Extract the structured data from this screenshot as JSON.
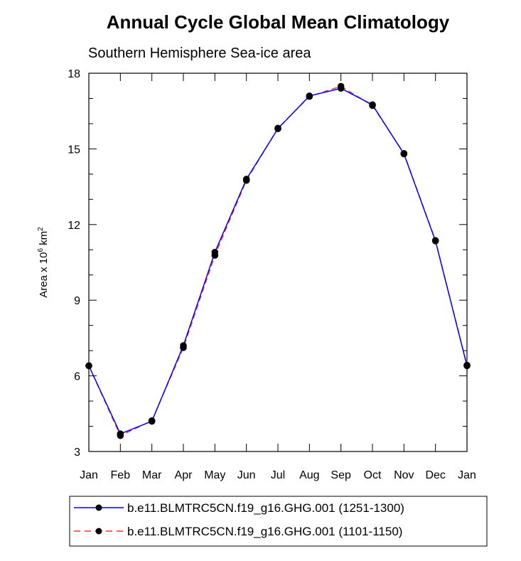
{
  "chart_data": {
    "type": "line",
    "title": "Annual Cycle Global Mean Climatology",
    "subtitle": "Southern Hemisphere Sea-ice area",
    "ylabel": {
      "prefix": "Area x 10",
      "exp1": "6",
      "mid": " km",
      "exp2": "2"
    },
    "xlabel": "",
    "categories": [
      "Jan",
      "Feb",
      "Mar",
      "Apr",
      "May",
      "Jun",
      "Jul",
      "Aug",
      "Sep",
      "Oct",
      "Nov",
      "Dec",
      "Jan"
    ],
    "ylim": [
      3,
      18
    ],
    "yticks": [
      "3",
      "6",
      "9",
      "12",
      "15",
      "18"
    ],
    "series": [
      {
        "name": "b.e11.BLMTRC5CN.f19_g16.GHG.001 (1251-1300)",
        "color": "#0000ff",
        "dash": "solid",
        "values": [
          6.4,
          3.7,
          4.2,
          7.2,
          10.9,
          13.8,
          15.8,
          17.1,
          17.4,
          16.75,
          14.8,
          11.35,
          6.4
        ]
      },
      {
        "name": "b.e11.BLMTRC5CN.f19_g16.GHG.001 (1101-1150)",
        "color": "#ff3030",
        "dash": "dashed",
        "values": [
          6.4,
          3.63,
          4.22,
          7.12,
          10.78,
          13.75,
          15.82,
          17.08,
          17.48,
          16.72,
          14.82,
          11.37,
          6.42
        ]
      }
    ],
    "legend_position": "bottom"
  }
}
